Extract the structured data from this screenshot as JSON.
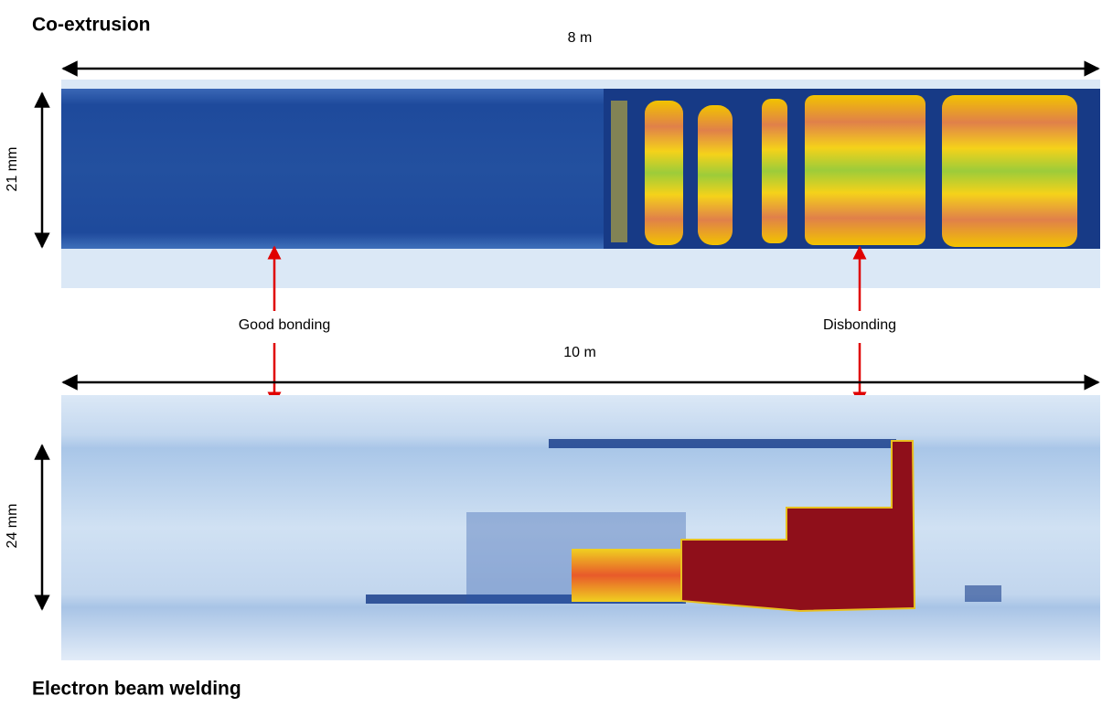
{
  "top_panel": {
    "title": "Co-extrusion",
    "length_label": "8 m",
    "width_label": "21 mm"
  },
  "annotations": {
    "good": "Good bonding",
    "bad": "Disbonding"
  },
  "bottom_panel": {
    "title": "Electron beam welding",
    "length_label": "10 m",
    "width_label": "24 mm"
  }
}
